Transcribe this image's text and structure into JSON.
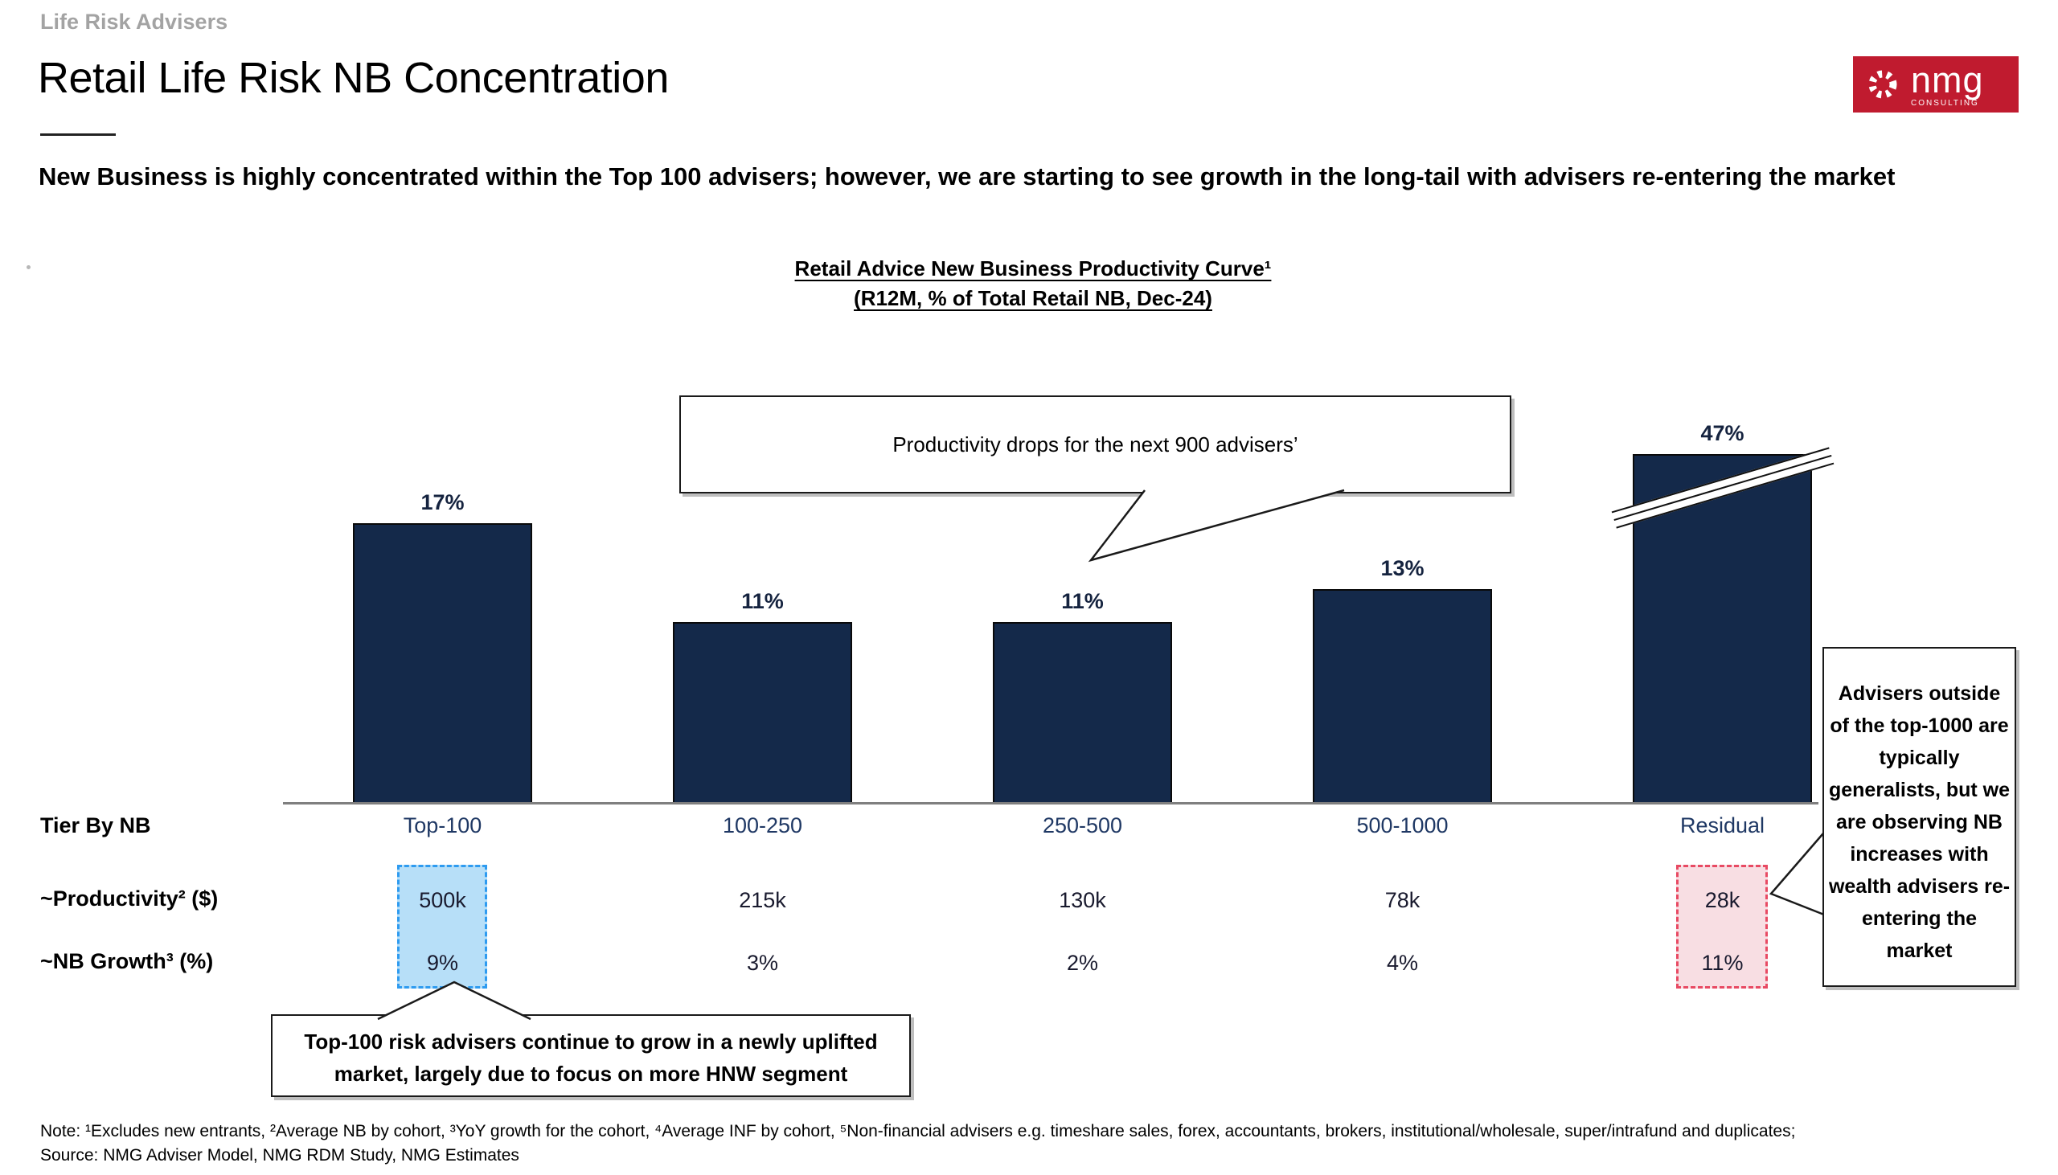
{
  "header": {
    "eyebrow": "Life Risk Advisers",
    "title": "Retail Life Risk NB Concentration",
    "subtitle": "New Business is highly concentrated within the Top 100 advisers; however, we are starting to see growth in the long-tail with advisers re-entering the market"
  },
  "logo": {
    "text": "nmg",
    "sub": "CONSULTING",
    "bg_color": "#c01b2f"
  },
  "chart_data": {
    "type": "bar",
    "title": "Retail Advice New Business Productivity Curve¹",
    "subtitle": "(R12M, % of Total Retail NB, Dec-24)",
    "categories": [
      "Top-100",
      "100-250",
      "250-500",
      "500-1000",
      "Residual"
    ],
    "values": [
      17,
      11,
      11,
      13,
      47
    ],
    "value_labels": [
      "17%",
      "11%",
      "11%",
      "13%",
      "47%"
    ],
    "unit": "%",
    "ylim": [
      0,
      20
    ],
    "grid": false,
    "legend": false,
    "bar_color": "#14294a",
    "axis_break": {
      "category": "Residual",
      "note": "47% bar truncated with diagonal break marks"
    },
    "table": {
      "row_labels": [
        "Tier By NB",
        "~Productivity² ($)",
        "~NB Growth³ (%)"
      ],
      "productivity": [
        "500k",
        "215k",
        "130k",
        "78k",
        "28k"
      ],
      "nb_growth": [
        "9%",
        "3%",
        "2%",
        "4%",
        "11%"
      ],
      "highlights": {
        "top_100": {
          "fill": "#b7dff8",
          "border": "#2e9bf0"
        },
        "residual": {
          "fill": "#f8dee3",
          "border": "#e84a63"
        }
      }
    }
  },
  "callouts": {
    "productivity_drop": "Productivity drops for the next  900 advisers’",
    "top100_growth": "Top-100 risk advisers continue to grow in a newly uplifted market, largely due to focus on more HNW segment",
    "residual_advisers": "Advisers outside of the top-1000 are typically generalists, but we are observing NB increases with wealth advisers re-entering the market"
  },
  "footer": {
    "note": "Note: ¹Excludes new entrants, ²Average NB by cohort, ³YoY growth for the cohort, ⁴Average INF by cohort, ⁵Non-financial advisers e.g. timeshare sales, forex, accountants, brokers, institutional/wholesale, super/intrafund and duplicates;",
    "source": "Source: NMG Adviser Model, NMG RDM Study, NMG Estimates"
  }
}
